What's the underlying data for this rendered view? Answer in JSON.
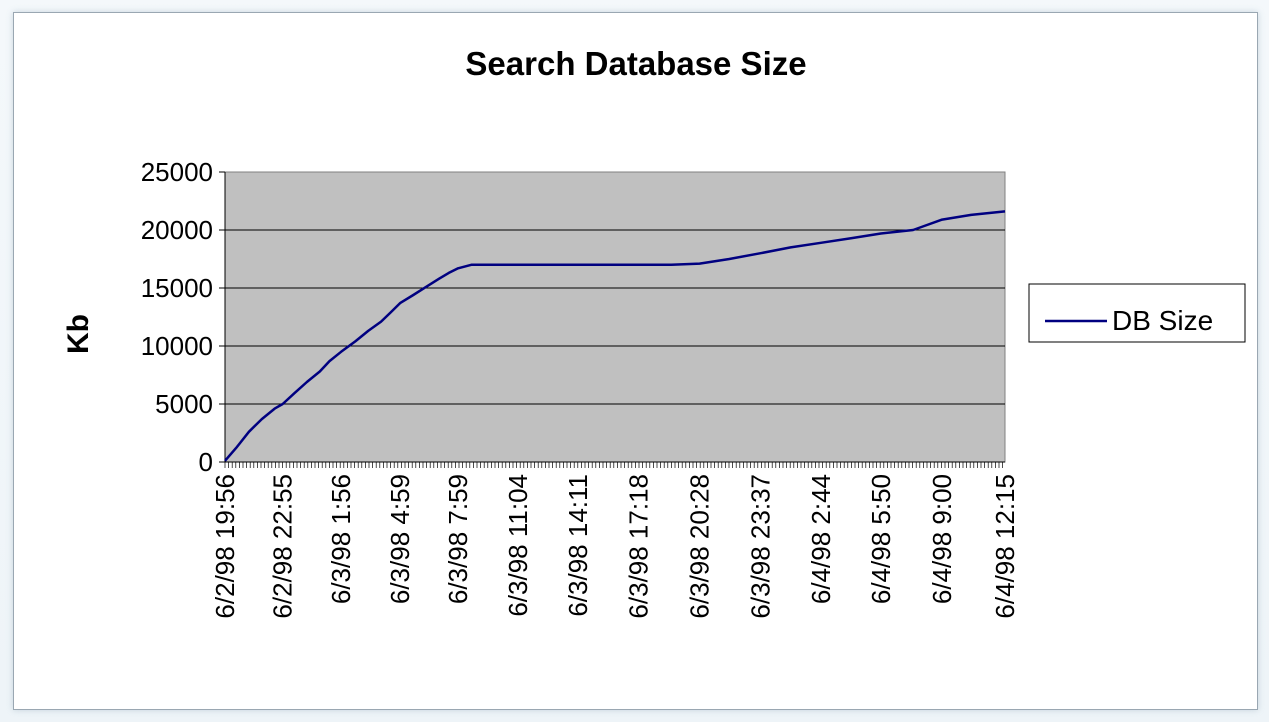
{
  "chart_data": {
    "type": "line",
    "title": "Search Database Size",
    "xlabel": "",
    "ylabel": "Kb",
    "ylim": [
      0,
      25000
    ],
    "yticks": [
      0,
      5000,
      10000,
      15000,
      20000,
      25000
    ],
    "x_tick_labels": [
      "6/2/98 19:56",
      "6/2/98 22:55",
      "6/3/98 1:56",
      "6/3/98 4:59",
      "6/3/98 7:59",
      "6/3/98 11:04",
      "6/3/98 14:11",
      "6/3/98 17:18",
      "6/3/98 20:28",
      "6/3/98 23:37",
      "6/4/98 2:44",
      "6/4/98 5:50",
      "6/4/98 9:00",
      "6/4/98 12:15"
    ],
    "grid": true,
    "legend_position": "right",
    "colors": {
      "plot_background": "#c0c0c0",
      "line": "#000080",
      "gridline": "#000000"
    },
    "series": [
      {
        "name": "DB Size",
        "x": [
          "6/2/98 19:56",
          "6/2/98 20:30",
          "6/2/98 21:10",
          "6/2/98 21:50",
          "6/2/98 22:30",
          "6/2/98 22:55",
          "6/2/98 23:30",
          "6/3/98 0:10",
          "6/3/98 0:50",
          "6/3/98 1:20",
          "6/3/98 1:56",
          "6/3/98 2:40",
          "6/3/98 3:20",
          "6/3/98 4:00",
          "6/3/98 4:30",
          "6/3/98 4:59",
          "6/3/98 5:40",
          "6/3/98 6:20",
          "6/3/98 7:00",
          "6/3/98 7:30",
          "6/3/98 7:59",
          "6/3/98 8:40",
          "6/3/98 9:10",
          "6/3/98 9:40",
          "6/3/98 11:04",
          "6/3/98 14:11",
          "6/3/98 17:18",
          "6/3/98 19:00",
          "6/3/98 20:28",
          "6/3/98 22:00",
          "6/3/98 23:37",
          "6/4/98 1:10",
          "6/4/98 2:44",
          "6/4/98 4:20",
          "6/4/98 5:50",
          "6/4/98 7:30",
          "6/4/98 8:00",
          "6/4/98 9:00",
          "6/4/98 10:30",
          "6/4/98 12:15"
        ],
        "values": [
          100,
          1200,
          2600,
          3700,
          4600,
          5000,
          5900,
          6900,
          7800,
          8700,
          9500,
          10400,
          11300,
          12100,
          12900,
          13700,
          14400,
          15100,
          15800,
          16300,
          16700,
          17000,
          17000,
          17000,
          17000,
          17000,
          17000,
          17000,
          17100,
          17500,
          18000,
          18500,
          18900,
          19300,
          19700,
          20000,
          20300,
          20900,
          21300,
          21600
        ]
      }
    ]
  }
}
